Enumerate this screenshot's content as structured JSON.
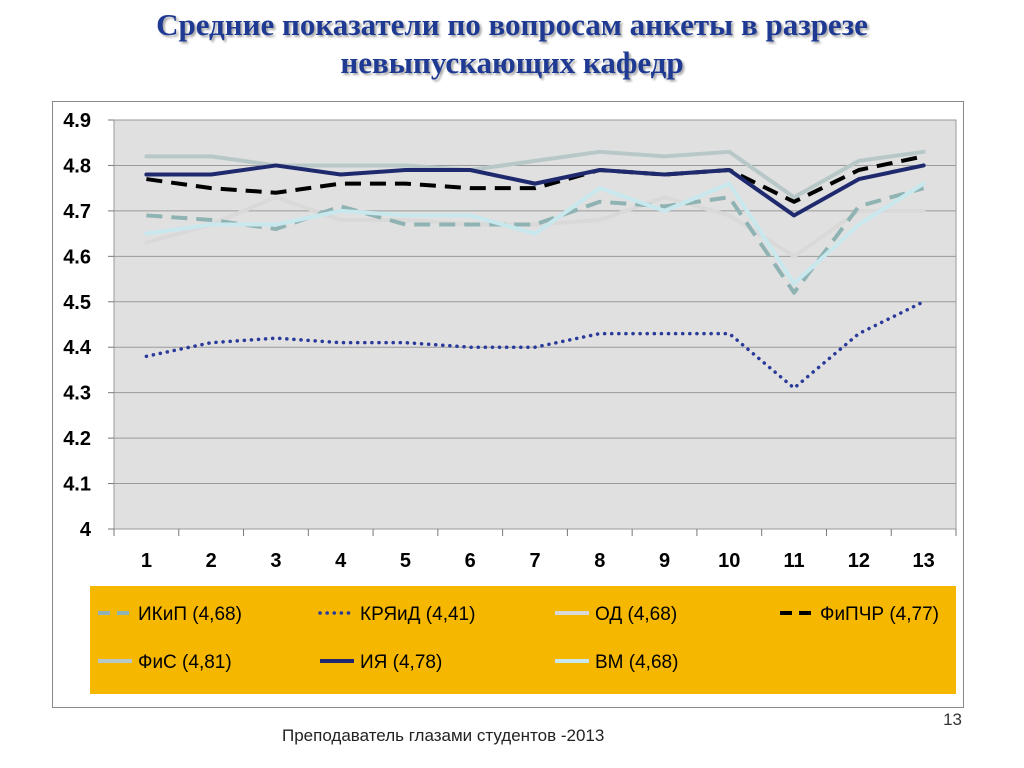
{
  "title": {
    "line1": "Средние показатели по вопросам  анкеты  в разрезе",
    "line2": "невыпускающих кафедр"
  },
  "footer": "Преподаватель глазами студентов -2013",
  "page_number": "13",
  "colors": {
    "plot_background": "#e0e0e0",
    "legend_background": "#f5b700",
    "title": "#1f3a93"
  },
  "chart_data": {
    "type": "line",
    "title": "",
    "xlabel": "",
    "ylabel": "",
    "categories": [
      "1",
      "2",
      "3",
      "4",
      "5",
      "6",
      "7",
      "8",
      "9",
      "10",
      "11",
      "12",
      "13"
    ],
    "ylim": [
      4.0,
      4.9
    ],
    "yticks": [
      "4",
      "4.1",
      "4.2",
      "4.3",
      "4.4",
      "4.5",
      "4.6",
      "4.7",
      "4.8",
      "4.9"
    ],
    "grid": true,
    "legend_position": "bottom",
    "series": [
      {
        "name": "ИКиП (4,68)",
        "color": "#8fb3b3",
        "dash": "dashed",
        "values": [
          4.69,
          4.68,
          4.66,
          4.71,
          4.67,
          4.67,
          4.67,
          4.72,
          4.71,
          4.73,
          4.52,
          4.71,
          4.75
        ]
      },
      {
        "name": "КРЯиД (4,41)",
        "color": "#2a3a9a",
        "dash": "dotted",
        "values": [
          4.38,
          4.41,
          4.42,
          4.41,
          4.41,
          4.4,
          4.4,
          4.43,
          4.43,
          4.43,
          4.31,
          4.43,
          4.5
        ]
      },
      {
        "name": "ОД (4,68)",
        "color": "#d9d9d9",
        "dash": "solid",
        "values": [
          4.63,
          4.67,
          4.73,
          4.68,
          4.68,
          4.67,
          4.67,
          4.68,
          4.73,
          4.69,
          4.6,
          4.7,
          4.7
        ]
      },
      {
        "name": "ФиПЧР (4,77)",
        "color": "#000000",
        "dash": "dashed",
        "values": [
          4.77,
          4.75,
          4.74,
          4.76,
          4.76,
          4.75,
          4.75,
          4.79,
          4.78,
          4.79,
          4.72,
          4.79,
          4.82
        ]
      },
      {
        "name": "ФиС (4,81)",
        "color": "#b8c8c8",
        "dash": "solid",
        "values": [
          4.82,
          4.82,
          4.8,
          4.8,
          4.8,
          4.79,
          4.81,
          4.83,
          4.82,
          4.83,
          4.73,
          4.81,
          4.83
        ]
      },
      {
        "name": "ИЯ (4,78)",
        "color": "#1f2a6e",
        "dash": "solid",
        "values": [
          4.78,
          4.78,
          4.8,
          4.78,
          4.79,
          4.79,
          4.76,
          4.79,
          4.78,
          4.79,
          4.69,
          4.77,
          4.8
        ]
      },
      {
        "name": "ВМ (4,68)",
        "color": "#c8e8ee",
        "dash": "solid",
        "values": [
          4.65,
          4.67,
          4.67,
          4.7,
          4.69,
          4.69,
          4.65,
          4.75,
          4.7,
          4.76,
          4.54,
          4.67,
          4.76
        ]
      }
    ]
  }
}
